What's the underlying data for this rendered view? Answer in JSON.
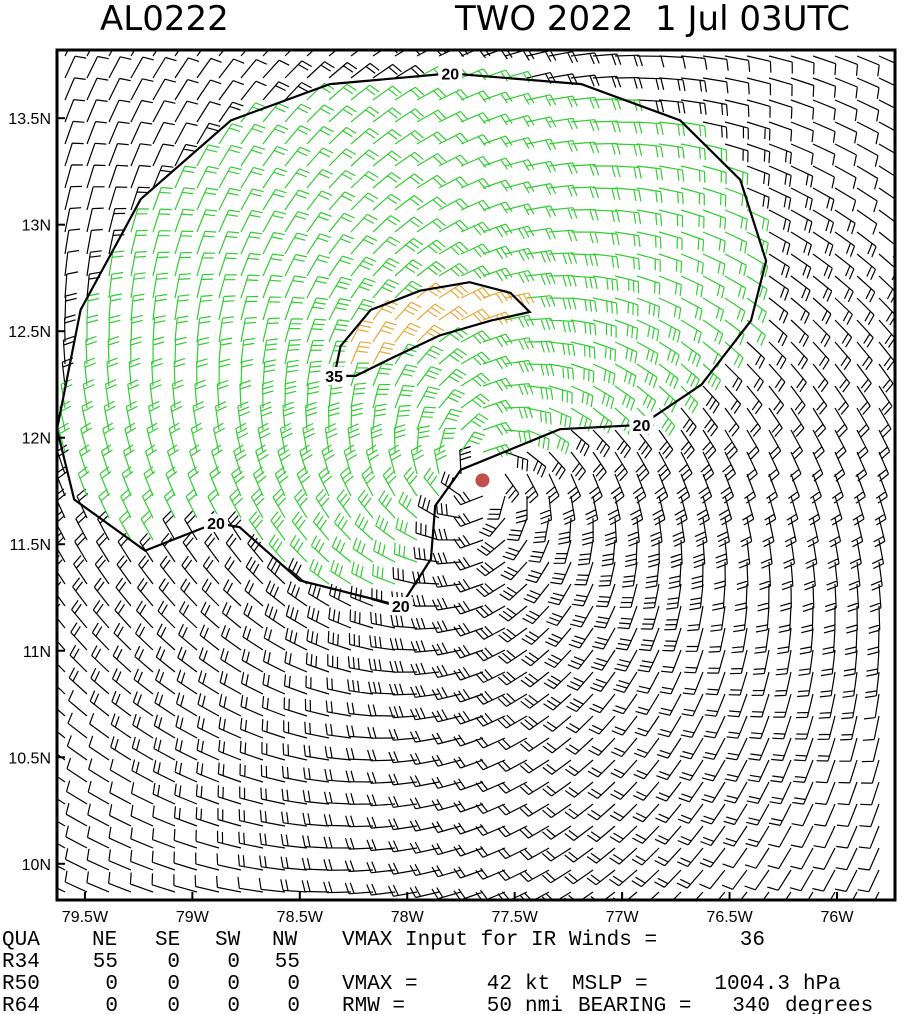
{
  "chart_data": {
    "type": "wind-barb",
    "title_left": "AL0222",
    "title_right": "TWO 2022  1 Jul 03UTC",
    "xlim": [
      -79.63,
      -75.73
    ],
    "ylim": [
      9.83,
      13.82
    ],
    "xticks": [
      {
        "value": -79.5,
        "label": "79.5W"
      },
      {
        "value": -79,
        "label": "79W"
      },
      {
        "value": -78.5,
        "label": "78.5W"
      },
      {
        "value": -78,
        "label": "78W"
      },
      {
        "value": -77.5,
        "label": "77.5W"
      },
      {
        "value": -77,
        "label": "77W"
      },
      {
        "value": -76.5,
        "label": "76.5W"
      },
      {
        "value": -76,
        "label": "76W"
      }
    ],
    "yticks": [
      {
        "value": 10,
        "label": "10N"
      },
      {
        "value": 10.5,
        "label": "10.5N"
      },
      {
        "value": 11,
        "label": "11N"
      },
      {
        "value": 11.5,
        "label": "11.5N"
      },
      {
        "value": 12,
        "label": "12N"
      },
      {
        "value": 12.5,
        "label": "12.5N"
      },
      {
        "value": 13,
        "label": "13N"
      },
      {
        "value": 13.5,
        "label": "13.5N"
      }
    ],
    "center": {
      "lon": -77.65,
      "lat": 11.8,
      "color": "#c0504d"
    },
    "contours": [
      {
        "label": "20",
        "color": "#32cd32",
        "lon": [
          -78.03,
          -77.89,
          -77.87,
          -77.75,
          -77.29,
          -76.91,
          -76.63,
          -76.4,
          -76.33,
          -76.45,
          -76.73,
          -77.19,
          -77.8,
          -78.36,
          -78.82,
          -79.24,
          -79.52,
          -79.63,
          -79.55,
          -79.22,
          -78.89,
          -78.78,
          -78.5,
          -78.03
        ],
        "lat": [
          11.21,
          11.43,
          11.68,
          11.85,
          12.04,
          12.06,
          12.25,
          12.55,
          12.83,
          13.21,
          13.49,
          13.66,
          13.71,
          13.66,
          13.49,
          13.12,
          12.6,
          12.04,
          11.71,
          11.47,
          11.6,
          11.58,
          11.33,
          11.21
        ]
      },
      {
        "label": "35",
        "color": "#e8a838",
        "lon": [
          -78.34,
          -78.31,
          -78.17,
          -77.94,
          -77.71,
          -77.52,
          -77.43,
          -77.61,
          -77.85,
          -78.08,
          -78.24,
          -78.34
        ],
        "lat": [
          12.29,
          12.43,
          12.6,
          12.69,
          12.73,
          12.68,
          12.59,
          12.55,
          12.48,
          12.37,
          12.29,
          12.29
        ]
      }
    ]
  },
  "info": {
    "header": [
      "QUA",
      "NE",
      "SE",
      "SW",
      "NW"
    ],
    "rows": [
      [
        "R34",
        55,
        0,
        0,
        55
      ],
      [
        "R50",
        0,
        0,
        0,
        0
      ],
      [
        "R64",
        0,
        0,
        0,
        0
      ]
    ],
    "vmax_input_label": "VMAX Input for IR Winds =",
    "vmax_input": 36,
    "vmax_label": "VMAX =",
    "vmax": 42,
    "vmax_unit": "kt",
    "mslp_label": "MSLP =",
    "mslp": 1004.3,
    "mslp_unit": "hPa",
    "rmw_label": "RMW =",
    "rmw": 50,
    "rmw_unit": "nmi",
    "bearing_label": "BEARING =",
    "bearing": 340,
    "bearing_unit": "degrees"
  }
}
